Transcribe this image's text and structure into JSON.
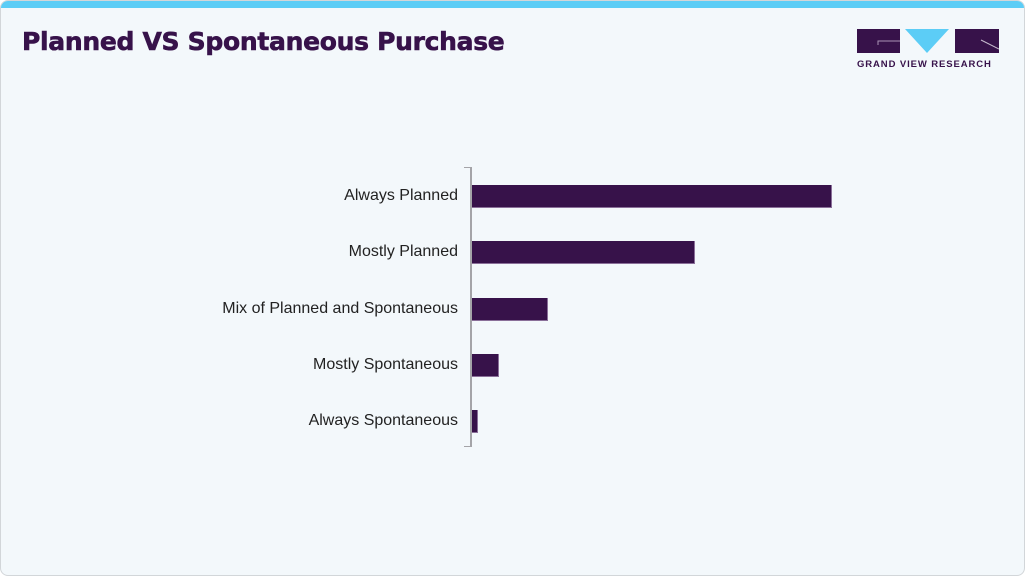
{
  "header": {
    "title": "Planned VS Spontaneous Purchase",
    "accent_bar_color": "#5ccdf6",
    "title_color": "#37124a"
  },
  "logo": {
    "text": "GRAND VIEW RESEARCH",
    "primary_color": "#37124a",
    "accent_color": "#5ccdf6"
  },
  "chart_data": {
    "type": "bar",
    "orientation": "horizontal",
    "title": "Planned VS Spontaneous Purchase",
    "xlabel": "",
    "ylabel": "",
    "categories": [
      "Always Planned",
      "Mostly Planned",
      "Mix of Planned and Spontaneous",
      "Mostly Spontaneous",
      "Always Spontaneous"
    ],
    "values": [
      100,
      62,
      21,
      7.5,
      1.7
    ],
    "value_unit": "relative (longest bar = 100; no axis scale shown)",
    "bar_color": "#37124a",
    "grid": false,
    "legend": null,
    "xlim": [
      0,
      100
    ]
  }
}
